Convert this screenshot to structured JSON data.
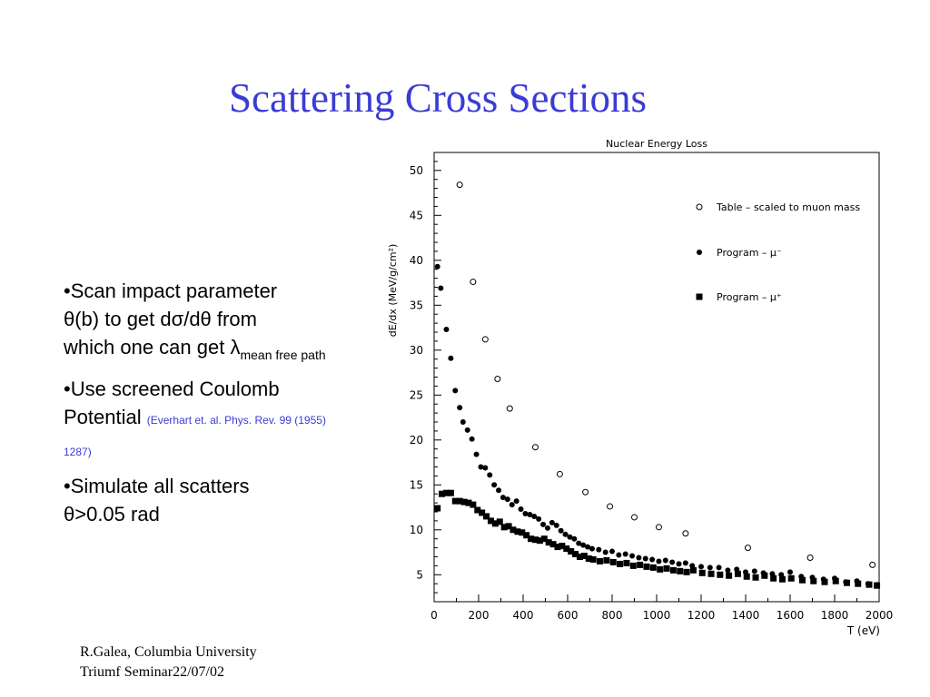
{
  "slide": {
    "title": "Scattering Cross Sections"
  },
  "bullets": [
    {
      "lines": [
        "•Scan impact parameter",
        "θ(b) to get dσ/dθ from",
        "which one can get λ"
      ],
      "subscript": "mean free path"
    },
    {
      "main": "•Use screened Coulomb Potential",
      "reference": "(Everhart et. al. Phys. Rev. 99 (1955) 1287)"
    },
    {
      "lines": [
        "•Simulate all scatters",
        "θ>0.05 rad"
      ]
    }
  ],
  "footer": {
    "line1": "R.Galea, Columbia University",
    "line2": "Triumf Seminar22/07/02"
  },
  "chart_data": {
    "type": "scatter",
    "title": "Nuclear Energy Loss",
    "xlabel": "T (eV)",
    "ylabel": "dE/dx (MeV/g/cm²)",
    "xlim": [
      0,
      2000
    ],
    "ylim": [
      2,
      52
    ],
    "xticks": [
      0,
      200,
      400,
      600,
      800,
      1000,
      1200,
      1400,
      1600,
      1800,
      2000
    ],
    "yticks": [
      5,
      10,
      15,
      20,
      25,
      30,
      35,
      40,
      45,
      50
    ],
    "legend_position": "top-right",
    "series": [
      {
        "name": "Table – scaled to muon mass",
        "marker": "open-circle",
        "x": [
          115,
          175,
          230,
          285,
          340,
          455,
          565,
          680,
          790,
          900,
          1010,
          1130,
          1410,
          1690,
          1970
        ],
        "y": [
          48.4,
          37.6,
          31.2,
          26.8,
          23.5,
          19.2,
          16.2,
          14.2,
          12.6,
          11.4,
          10.3,
          9.6,
          8.0,
          6.9,
          6.1
        ]
      },
      {
        "name": "Program – μ⁻",
        "marker": "filled-circle",
        "x": [
          15,
          30,
          55,
          75,
          95,
          115,
          130,
          150,
          170,
          190,
          210,
          230,
          250,
          270,
          290,
          310,
          330,
          350,
          370,
          390,
          410,
          430,
          450,
          470,
          490,
          510,
          530,
          550,
          570,
          590,
          610,
          630,
          650,
          670,
          690,
          710,
          740,
          770,
          800,
          830,
          860,
          890,
          920,
          950,
          980,
          1010,
          1040,
          1070,
          1100,
          1130,
          1160,
          1200,
          1240,
          1280,
          1320,
          1360,
          1400,
          1440,
          1480,
          1520,
          1560,
          1600,
          1650,
          1700,
          1750,
          1800,
          1850,
          1900,
          1950,
          1990
        ],
        "y": [
          39.3,
          36.9,
          32.3,
          29.1,
          25.5,
          23.6,
          22.0,
          21.1,
          20.1,
          18.4,
          17.0,
          16.9,
          16.1,
          15.0,
          14.4,
          13.6,
          13.4,
          12.8,
          13.2,
          12.3,
          11.8,
          11.7,
          11.5,
          11.2,
          10.6,
          10.2,
          10.8,
          10.5,
          9.9,
          9.5,
          9.2,
          9.0,
          8.5,
          8.3,
          8.1,
          7.9,
          7.8,
          7.5,
          7.6,
          7.2,
          7.3,
          7.1,
          6.9,
          6.8,
          6.7,
          6.5,
          6.6,
          6.4,
          6.2,
          6.3,
          6.0,
          5.9,
          5.8,
          5.8,
          5.5,
          5.6,
          5.3,
          5.4,
          5.2,
          5.1,
          5.0,
          5.3,
          4.8,
          4.7,
          4.5,
          4.6,
          4.2,
          4.3,
          4.0,
          3.9
        ]
      },
      {
        "name": "Program – μ⁺",
        "marker": "filled-square",
        "x": [
          15,
          35,
          55,
          75,
          95,
          115,
          135,
          155,
          175,
          195,
          215,
          235,
          255,
          275,
          295,
          315,
          335,
          355,
          375,
          395,
          415,
          435,
          455,
          475,
          495,
          515,
          535,
          555,
          575,
          595,
          615,
          635,
          655,
          675,
          695,
          715,
          745,
          775,
          805,
          835,
          865,
          895,
          925,
          955,
          985,
          1015,
          1045,
          1075,
          1105,
          1135,
          1165,
          1205,
          1245,
          1285,
          1325,
          1365,
          1405,
          1445,
          1485,
          1525,
          1565,
          1605,
          1655,
          1705,
          1755,
          1805,
          1855,
          1905,
          1955,
          1990
        ],
        "y": [
          12.4,
          14.0,
          14.1,
          14.1,
          13.2,
          13.2,
          13.1,
          13.0,
          12.8,
          12.2,
          11.9,
          11.5,
          11.0,
          10.7,
          10.9,
          10.3,
          10.4,
          10.0,
          9.8,
          9.7,
          9.4,
          9.0,
          8.9,
          8.8,
          9.0,
          8.6,
          8.4,
          8.1,
          8.2,
          7.9,
          7.6,
          7.3,
          7.0,
          7.1,
          6.8,
          6.7,
          6.5,
          6.6,
          6.4,
          6.2,
          6.3,
          6.0,
          6.1,
          5.9,
          5.8,
          5.6,
          5.7,
          5.5,
          5.4,
          5.3,
          5.5,
          5.2,
          5.1,
          5.0,
          4.9,
          5.1,
          4.8,
          4.7,
          4.9,
          4.6,
          4.5,
          4.6,
          4.4,
          4.3,
          4.2,
          4.3,
          4.1,
          4.0,
          3.9,
          3.8
        ]
      }
    ]
  }
}
